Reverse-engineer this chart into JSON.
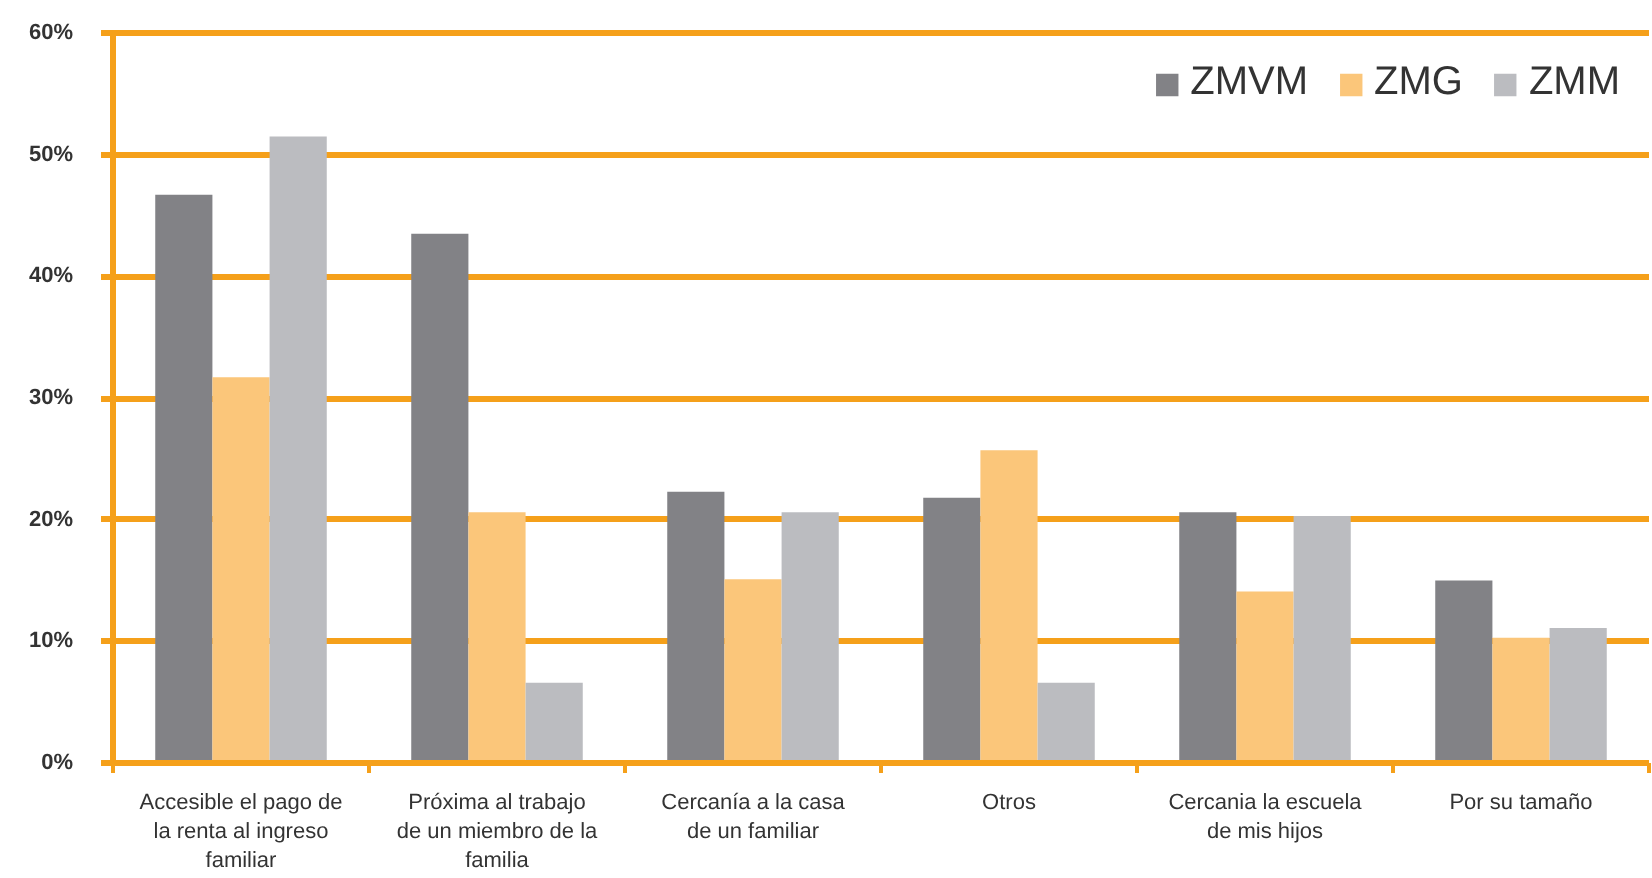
{
  "chart_data": {
    "type": "bar",
    "categories": [
      "Accesible el pago de la renta al ingreso familiar",
      "Próxima al trabajo de un miembro de la familia",
      "Cercanía a la casa de un familiar",
      "Otros",
      "Cercania la escuela de mis hijos",
      "Por su tamaño"
    ],
    "series": [
      {
        "name": "ZMVM",
        "color": "#828286",
        "values": [
          46.7,
          43.5,
          22.3,
          21.8,
          20.6,
          15.0
        ]
      },
      {
        "name": "ZMG",
        "color": "#fbc67a",
        "values": [
          31.7,
          20.6,
          15.1,
          25.7,
          14.1,
          10.3
        ]
      },
      {
        "name": "ZMM",
        "color": "#bbbcc0",
        "values": [
          51.5,
          6.6,
          20.6,
          6.6,
          20.3,
          11.1
        ]
      }
    ],
    "ylim": [
      0,
      60
    ],
    "yticks": [
      {
        "value": 0,
        "label": "0%"
      },
      {
        "value": 10,
        "label": "10%"
      },
      {
        "value": 20,
        "label": "20%"
      },
      {
        "value": 30,
        "label": "30%"
      },
      {
        "value": 40,
        "label": "40%"
      },
      {
        "value": 50,
        "label": "50%"
      },
      {
        "value": 60,
        "label": "60%"
      }
    ],
    "grid": "y",
    "legend": "top right"
  }
}
